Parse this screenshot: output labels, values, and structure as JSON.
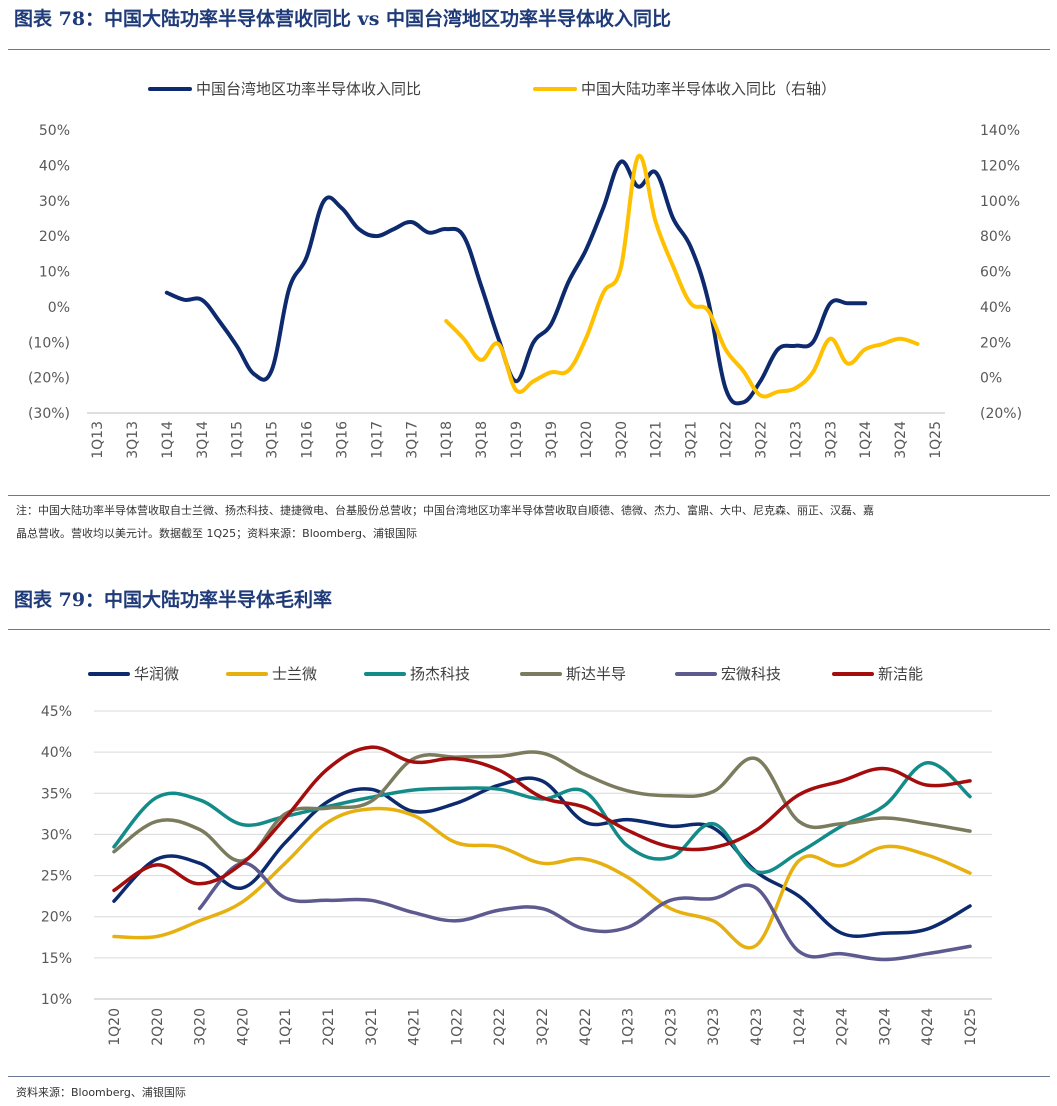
{
  "figure1": {
    "title": "图表 78：中国大陆功率半导体营收同比 vs 中国台湾地区功率半导体收入同比",
    "note_line1": "注：中国大陆功率半导体营收取自士兰微、扬杰科技、捷捷微电、台基股份总营收；中国台湾地区功率半导体营收取自顺德、德微、杰力、富鼎、大中、尼克森、丽正、汉磊、嘉",
    "note_line2": "晶总营收。营收均以美元计。数据截至 1Q25；资料来源：Bloomberg、浦银国际"
  },
  "figure2": {
    "title": "图表 79：中国大陆功率半导体毛利率",
    "source": "资料来源：Bloomberg、浦银国际"
  },
  "chart_data": [
    {
      "type": "line",
      "categories": [
        "1Q13",
        "2Q13",
        "3Q13",
        "4Q13",
        "1Q14",
        "2Q14",
        "3Q14",
        "4Q14",
        "1Q15",
        "2Q15",
        "3Q15",
        "4Q15",
        "1Q16",
        "2Q16",
        "3Q16",
        "4Q16",
        "1Q17",
        "2Q17",
        "3Q17",
        "4Q17",
        "1Q18",
        "2Q18",
        "3Q18",
        "4Q18",
        "1Q19",
        "2Q19",
        "3Q19",
        "4Q19",
        "1Q20",
        "2Q20",
        "3Q20",
        "4Q20",
        "1Q21",
        "2Q21",
        "3Q21",
        "4Q21",
        "1Q22",
        "2Q22",
        "3Q22",
        "4Q22",
        "1Q23",
        "2Q23",
        "3Q23",
        "4Q23",
        "1Q24",
        "2Q24",
        "3Q24",
        "4Q24",
        "1Q25"
      ],
      "tick_labels": [
        "1Q13",
        "3Q13",
        "1Q14",
        "3Q14",
        "1Q15",
        "3Q15",
        "1Q16",
        "3Q16",
        "1Q17",
        "3Q17",
        "1Q18",
        "3Q18",
        "1Q19",
        "3Q19",
        "1Q20",
        "3Q20",
        "1Q21",
        "3Q21",
        "1Q22",
        "3Q22",
        "1Q23",
        "3Q23",
        "1Q24",
        "3Q24",
        "1Q25"
      ],
      "y_left": {
        "min": -30,
        "max": 50,
        "step": 10,
        "labels": [
          "50%",
          "40%",
          "30%",
          "20%",
          "10%",
          "0%",
          "(10%)",
          "(20%)",
          "(30%)"
        ]
      },
      "y_right": {
        "min": -20,
        "max": 140,
        "step": 20,
        "labels": [
          "140%",
          "120%",
          "100%",
          "80%",
          "60%",
          "40%",
          "20%",
          "0%",
          "(20%)"
        ]
      },
      "legend_position": "top",
      "grid": false,
      "series": [
        {
          "name": "中国台湾地区功率半导体收入同比",
          "axis": "left",
          "color": "#0d2a6e",
          "values": [
            null,
            null,
            null,
            null,
            4,
            2,
            2,
            -4,
            -11,
            -19,
            -18,
            5,
            14,
            30,
            28,
            22,
            20,
            22,
            24,
            21,
            22,
            20,
            6,
            -9,
            -21,
            -10,
            -5,
            7,
            16,
            28,
            41,
            34,
            38,
            25,
            17,
            2,
            -23,
            -27,
            -21,
            -12,
            -11,
            -10,
            1,
            1,
            1,
            null,
            null,
            null,
            null
          ]
        },
        {
          "name": "中国大陆功率半导体收入同比（右轴）",
          "axis": "right",
          "color": "#ffc000",
          "values": [
            null,
            null,
            null,
            null,
            null,
            null,
            null,
            null,
            null,
            null,
            null,
            null,
            null,
            null,
            null,
            null,
            null,
            null,
            null,
            null,
            32,
            22,
            10,
            19,
            -7,
            -2,
            3,
            4,
            22,
            48,
            62,
            125,
            88,
            63,
            42,
            38,
            16,
            4,
            -10,
            -8,
            -6,
            3,
            22,
            8,
            16,
            19,
            22,
            19,
            null
          ]
        }
      ]
    },
    {
      "type": "line",
      "categories": [
        "1Q20",
        "2Q20",
        "3Q20",
        "4Q20",
        "1Q21",
        "2Q21",
        "3Q21",
        "4Q21",
        "1Q22",
        "2Q22",
        "3Q22",
        "4Q22",
        "1Q23",
        "2Q23",
        "3Q23",
        "4Q23",
        "1Q24",
        "2Q24",
        "3Q24",
        "4Q24",
        "1Q25"
      ],
      "y": {
        "min": 10,
        "max": 45,
        "step": 5,
        "labels": [
          "45%",
          "40%",
          "35%",
          "30%",
          "25%",
          "20%",
          "15%",
          "10%"
        ]
      },
      "legend_position": "top",
      "grid": true,
      "series": [
        {
          "name": "华润微",
          "color": "#0d2a6e",
          "values": [
            21.9,
            27.0,
            26.5,
            23.5,
            29.0,
            34.0,
            35.5,
            32.8,
            33.8,
            36.0,
            36.5,
            31.5,
            31.8,
            31.0,
            30.8,
            25.5,
            22.5,
            18.0,
            18.0,
            18.5,
            21.3
          ]
        },
        {
          "name": "士兰微",
          "color": "#e6b010",
          "values": [
            17.6,
            17.6,
            19.5,
            21.8,
            26.5,
            31.5,
            33.1,
            32.3,
            29.0,
            28.5,
            26.5,
            27.0,
            24.8,
            21.0,
            19.5,
            16.5,
            26.8,
            26.2,
            28.5,
            27.5,
            25.3
          ]
        },
        {
          "name": "扬杰科技",
          "color": "#138b88",
          "values": [
            28.5,
            34.5,
            34.2,
            31.2,
            32.2,
            33.4,
            34.5,
            35.4,
            35.6,
            35.5,
            34.3,
            35.2,
            28.6,
            27.2,
            31.3,
            25.5,
            27.8,
            31.0,
            33.5,
            38.7,
            34.6
          ]
        },
        {
          "name": "斯达半导",
          "color": "#7b7b5e",
          "values": [
            27.9,
            31.6,
            30.6,
            26.8,
            32.5,
            33.2,
            34.0,
            39.2,
            39.4,
            39.5,
            39.9,
            37.3,
            35.3,
            34.7,
            35.2,
            39.2,
            31.6,
            31.3,
            32.0,
            31.3,
            30.4
          ]
        },
        {
          "name": "宏微科技",
          "color": "#5c5a8e",
          "values": [
            null,
            null,
            21.0,
            26.5,
            22.3,
            22.0,
            22.0,
            20.5,
            19.5,
            20.8,
            21.0,
            18.5,
            18.7,
            22.0,
            22.2,
            23.5,
            15.8,
            15.5,
            14.8,
            15.5,
            16.4
          ]
        },
        {
          "name": "新洁能",
          "color": "#a30d0d",
          "values": [
            23.2,
            26.3,
            24.0,
            26.5,
            32.0,
            38.0,
            40.6,
            38.8,
            39.2,
            37.8,
            34.5,
            33.3,
            30.5,
            28.5,
            28.4,
            30.5,
            34.8,
            36.5,
            38.0,
            36.0,
            36.5
          ]
        }
      ]
    }
  ]
}
